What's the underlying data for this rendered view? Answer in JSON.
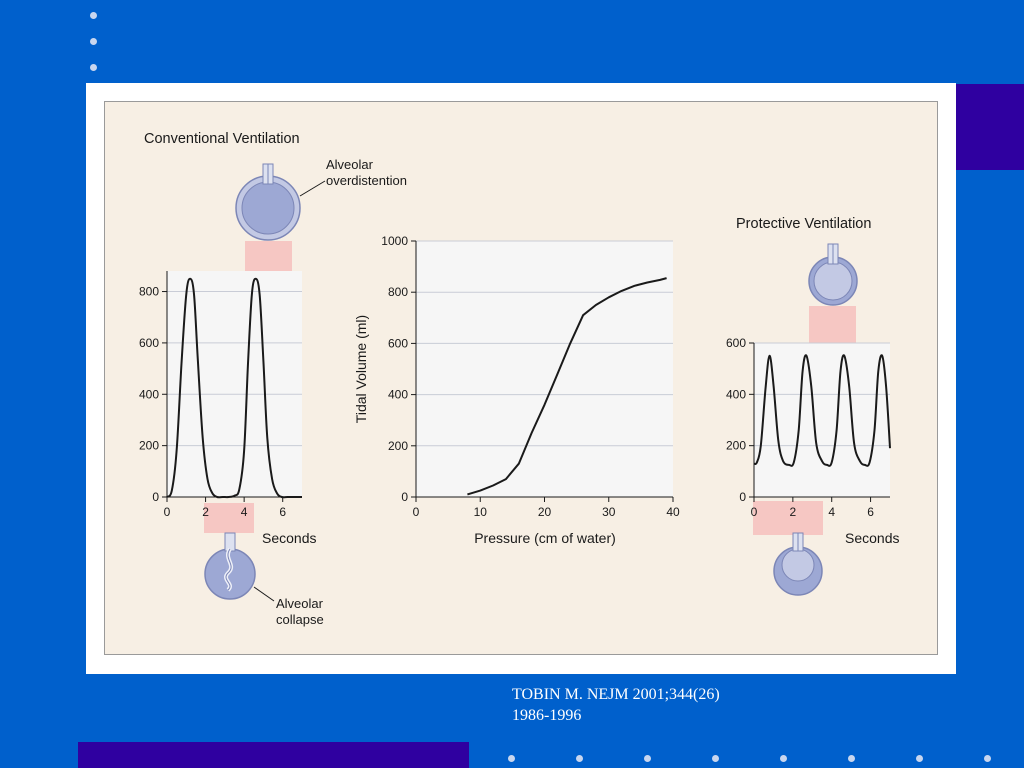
{
  "colors": {
    "background": "#0060cc",
    "accent": "#2f00a0",
    "figure_bg": "#f7efe4",
    "plot_bg": "#f6f6f6",
    "curve": "#1a1a1a",
    "alveolus": "#9da8d4",
    "pink_bridge": "#f6c7c3"
  },
  "citation": {
    "line1": "TOBIN M. NEJM 2001;344(26)",
    "line2": "1986-1996"
  },
  "chart_data": [
    {
      "id": "conventional",
      "type": "line",
      "title": "Conventional Ventilation",
      "xlabel": "Seconds",
      "ylabel": "",
      "xlim": [
        0,
        7
      ],
      "ylim": [
        0,
        880
      ],
      "xticks": [
        0,
        2,
        4,
        6
      ],
      "yticks": [
        0,
        200,
        400,
        600,
        800
      ],
      "grid": true,
      "series": [
        {
          "x": [
            0,
            0.25,
            0.5,
            0.75,
            1.0,
            1.2,
            1.4,
            1.6,
            1.85,
            2.1,
            2.35,
            2.6,
            2.9,
            3.2,
            3.5,
            3.75,
            4.0,
            4.2,
            4.4,
            4.6,
            4.8,
            5.0,
            5.2,
            5.45,
            5.7,
            5.95,
            6.25,
            6.55,
            6.8,
            7.0
          ],
          "y": [
            0,
            25,
            180,
            520,
            790,
            850,
            790,
            530,
            230,
            70,
            15,
            0,
            0,
            0,
            5,
            30,
            180,
            520,
            790,
            850,
            790,
            530,
            230,
            70,
            15,
            0,
            0,
            0,
            0,
            0
          ]
        }
      ],
      "annotations": {
        "top": "Alveolar overdistention",
        "bottom": "Alveolar collapse"
      }
    },
    {
      "id": "pv_curve",
      "type": "line",
      "title": "",
      "xlabel": "Pressure (cm of water)",
      "ylabel": "Tidal Volume (ml)",
      "xlim": [
        0,
        40
      ],
      "ylim": [
        0,
        1000
      ],
      "xticks": [
        0,
        10,
        20,
        30,
        40
      ],
      "yticks": [
        0,
        200,
        400,
        600,
        800,
        1000
      ],
      "grid": true,
      "series": [
        {
          "x": [
            8,
            10,
            12,
            14,
            16,
            18,
            20,
            22,
            24,
            26,
            28,
            30,
            32,
            34,
            36,
            38,
            39
          ],
          "y": [
            10,
            25,
            45,
            70,
            130,
            250,
            360,
            480,
            600,
            710,
            750,
            780,
            805,
            825,
            838,
            848,
            855
          ]
        }
      ]
    },
    {
      "id": "protective",
      "type": "line",
      "title": "Protective Ventilation",
      "xlabel": "Seconds",
      "ylabel": "",
      "xlim": [
        0,
        7
      ],
      "ylim": [
        0,
        600
      ],
      "xticks": [
        0,
        2,
        4,
        6
      ],
      "yticks": [
        0,
        200,
        400,
        600
      ],
      "grid": true,
      "series": [
        {
          "x": [
            0,
            0.15,
            0.35,
            0.6,
            0.8,
            1.0,
            1.25,
            1.5,
            1.8,
            2.05,
            2.3,
            2.5,
            2.7,
            2.95,
            3.2,
            3.5,
            3.75,
            4.0,
            4.25,
            4.45,
            4.65,
            4.9,
            5.15,
            5.45,
            5.7,
            5.95,
            6.2,
            6.4,
            6.6,
            6.8,
            7.0
          ],
          "y": [
            130,
            135,
            200,
            430,
            550,
            440,
            220,
            140,
            125,
            135,
            260,
            490,
            550,
            430,
            210,
            140,
            125,
            135,
            260,
            490,
            550,
            430,
            210,
            140,
            125,
            135,
            260,
            490,
            550,
            430,
            190
          ]
        }
      ]
    }
  ]
}
